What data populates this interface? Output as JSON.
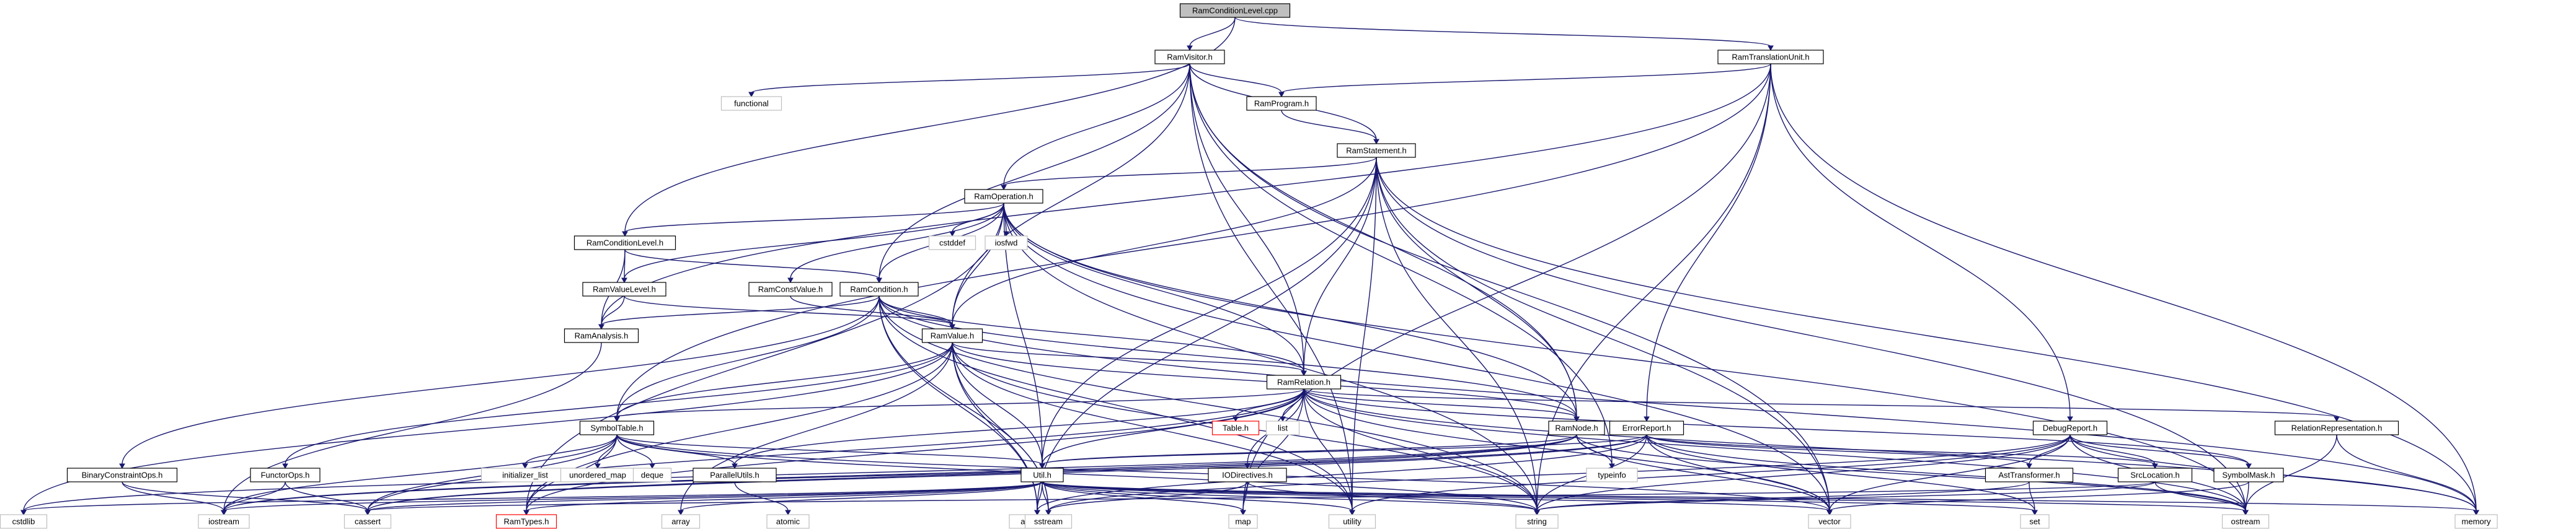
{
  "diagram": {
    "nodes": [
      {
        "id": "root",
        "label": "RamConditionLevel.cpp",
        "kind": "root"
      },
      {
        "id": "ramvisitor",
        "label": "RamVisitor.h",
        "kind": "header"
      },
      {
        "id": "ramtranslationunit",
        "label": "RamTranslationUnit.h",
        "kind": "header"
      },
      {
        "id": "functional",
        "label": "functional",
        "kind": "system"
      },
      {
        "id": "ramprogram",
        "label": "RamProgram.h",
        "kind": "header"
      },
      {
        "id": "ramstatement",
        "label": "RamStatement.h",
        "kind": "header"
      },
      {
        "id": "ramoperation",
        "label": "RamOperation.h",
        "kind": "header"
      },
      {
        "id": "cstddef",
        "label": "cstddef",
        "kind": "system"
      },
      {
        "id": "iosfwd",
        "label": "iosfwd",
        "kind": "system"
      },
      {
        "id": "ramconditionlevel",
        "label": "RamConditionLevel.h",
        "kind": "header"
      },
      {
        "id": "ramconstvalue",
        "label": "RamConstValue.h",
        "kind": "header"
      },
      {
        "id": "ramcondition",
        "label": "RamCondition.h",
        "kind": "header"
      },
      {
        "id": "ramvaluelevel",
        "label": "RamValueLevel.h",
        "kind": "header"
      },
      {
        "id": "ramanalysis",
        "label": "RamAnalysis.h",
        "kind": "header"
      },
      {
        "id": "ramvalue",
        "label": "RamValue.h",
        "kind": "header"
      },
      {
        "id": "ramrelation",
        "label": "RamRelation.h",
        "kind": "header"
      },
      {
        "id": "symboltable",
        "label": "SymbolTable.h",
        "kind": "header"
      },
      {
        "id": "tableh",
        "label": "Table.h",
        "kind": "missing"
      },
      {
        "id": "list",
        "label": "list",
        "kind": "system"
      },
      {
        "id": "ramnode",
        "label": "RamNode.h",
        "kind": "header"
      },
      {
        "id": "errorreport",
        "label": "ErrorReport.h",
        "kind": "header"
      },
      {
        "id": "debugreport",
        "label": "DebugReport.h",
        "kind": "header"
      },
      {
        "id": "relationrepresentation",
        "label": "RelationRepresentation.h",
        "kind": "header"
      },
      {
        "id": "binaryconstraintops",
        "label": "BinaryConstraintOps.h",
        "kind": "header"
      },
      {
        "id": "functorops",
        "label": "FunctorOps.h",
        "kind": "header"
      },
      {
        "id": "initializer_list",
        "label": "initializer_list",
        "kind": "system"
      },
      {
        "id": "unordered_map",
        "label": "unordered_map",
        "kind": "system"
      },
      {
        "id": "deque",
        "label": "deque",
        "kind": "system"
      },
      {
        "id": "parallelutils",
        "label": "ParallelUtils.h",
        "kind": "header"
      },
      {
        "id": "utilh",
        "label": "Util.h",
        "kind": "header"
      },
      {
        "id": "iodirectives",
        "label": "IODirectives.h",
        "kind": "header"
      },
      {
        "id": "typeinfo",
        "label": "typeinfo",
        "kind": "system"
      },
      {
        "id": "asttransformer",
        "label": "AstTransformer.h",
        "kind": "header"
      },
      {
        "id": "srclocation",
        "label": "SrcLocation.h",
        "kind": "header"
      },
      {
        "id": "symbolmask",
        "label": "SymbolMask.h",
        "kind": "header"
      },
      {
        "id": "cstdlib",
        "label": "cstdlib",
        "kind": "system"
      },
      {
        "id": "iostream",
        "label": "iostream",
        "kind": "system"
      },
      {
        "id": "cassert",
        "label": "cassert",
        "kind": "system"
      },
      {
        "id": "ramtypes",
        "label": "RamTypes.h",
        "kind": "missing"
      },
      {
        "id": "array",
        "label": "array",
        "kind": "system"
      },
      {
        "id": "atomic",
        "label": "atomic",
        "kind": "system"
      },
      {
        "id": "algorithm",
        "label": "algorithm",
        "kind": "system"
      },
      {
        "id": "sstream",
        "label": "sstream",
        "kind": "system"
      },
      {
        "id": "map",
        "label": "map",
        "kind": "system"
      },
      {
        "id": "utility",
        "label": "utility",
        "kind": "system"
      },
      {
        "id": "string",
        "label": "string",
        "kind": "system"
      },
      {
        "id": "vector",
        "label": "vector",
        "kind": "system"
      },
      {
        "id": "set",
        "label": "set",
        "kind": "system"
      },
      {
        "id": "ostream",
        "label": "ostream",
        "kind": "system"
      },
      {
        "id": "memory",
        "label": "memory",
        "kind": "system"
      }
    ],
    "edges": [
      [
        "root",
        "ramvisitor"
      ],
      [
        "root",
        "ramtranslationunit"
      ],
      [
        "root",
        "ramconditionlevel"
      ],
      [
        "ramvisitor",
        "functional"
      ],
      [
        "ramvisitor",
        "ramprogram"
      ],
      [
        "ramvisitor",
        "ramstatement"
      ],
      [
        "ramvisitor",
        "ramoperation"
      ],
      [
        "ramvisitor",
        "ramcondition"
      ],
      [
        "ramvisitor",
        "ramvalue"
      ],
      [
        "ramvisitor",
        "ramrelation"
      ],
      [
        "ramvisitor",
        "ramnode"
      ],
      [
        "ramvisitor",
        "typeinfo"
      ],
      [
        "ramvisitor",
        "vector"
      ],
      [
        "ramvisitor",
        "utility"
      ],
      [
        "ramtranslationunit",
        "ramprogram"
      ],
      [
        "ramtranslationunit",
        "ramanalysis"
      ],
      [
        "ramtranslationunit",
        "symboltable"
      ],
      [
        "ramtranslationunit",
        "errorreport"
      ],
      [
        "ramtranslationunit",
        "debugreport"
      ],
      [
        "ramtranslationunit",
        "memory"
      ],
      [
        "ramtranslationunit",
        "string"
      ],
      [
        "ramtranslationunit",
        "map"
      ],
      [
        "ramprogram",
        "ramstatement"
      ],
      [
        "ramstatement",
        "ramoperation"
      ],
      [
        "ramstatement",
        "ramvalue"
      ],
      [
        "ramstatement",
        "ramrelation"
      ],
      [
        "ramstatement",
        "ramnode"
      ],
      [
        "ramstatement",
        "utilh"
      ],
      [
        "ramstatement",
        "algorithm"
      ],
      [
        "ramstatement",
        "memory"
      ],
      [
        "ramstatement",
        "ostream"
      ],
      [
        "ramstatement",
        "string"
      ],
      [
        "ramstatement",
        "vector"
      ],
      [
        "ramstatement",
        "utility"
      ],
      [
        "ramoperation",
        "cstddef"
      ],
      [
        "ramoperation",
        "iosfwd"
      ],
      [
        "ramoperation",
        "ramconditionlevel"
      ],
      [
        "ramoperation",
        "ramconstvalue"
      ],
      [
        "ramoperation",
        "ramcondition"
      ],
      [
        "ramoperation",
        "ramvaluelevel"
      ],
      [
        "ramoperation",
        "ramvalue"
      ],
      [
        "ramoperation",
        "ramrelation"
      ],
      [
        "ramoperation",
        "ramnode"
      ],
      [
        "ramoperation",
        "utilh"
      ],
      [
        "ramoperation",
        "ramtypes"
      ],
      [
        "ramoperation",
        "string"
      ],
      [
        "ramoperation",
        "vector"
      ],
      [
        "ramoperation",
        "ostream"
      ],
      [
        "ramconditionlevel",
        "ramvaluelevel"
      ],
      [
        "ramconditionlevel",
        "ramanalysis"
      ],
      [
        "ramconditionlevel",
        "ramcondition"
      ],
      [
        "ramvaluelevel",
        "ramanalysis"
      ],
      [
        "ramvaluelevel",
        "ramvalue"
      ],
      [
        "ramconstvalue",
        "ramvalue"
      ],
      [
        "ramcondition",
        "ramvalue"
      ],
      [
        "ramcondition",
        "ramanalysis"
      ],
      [
        "ramcondition",
        "ramrelation"
      ],
      [
        "ramcondition",
        "ramnode"
      ],
      [
        "ramcondition",
        "symboltable"
      ],
      [
        "ramcondition",
        "binaryconstraintops"
      ],
      [
        "ramcondition",
        "algorithm"
      ],
      [
        "ramcondition",
        "sstream"
      ],
      [
        "ramcondition",
        "memory"
      ],
      [
        "ramcondition",
        "string"
      ],
      [
        "ramcondition",
        "utility"
      ],
      [
        "ramanalysis",
        "iostream"
      ],
      [
        "ramvalue",
        "ramrelation"
      ],
      [
        "ramvalue",
        "ramnode"
      ],
      [
        "ramvalue",
        "symboltable"
      ],
      [
        "ramvalue",
        "functorops"
      ],
      [
        "ramvalue",
        "utilh"
      ],
      [
        "ramvalue",
        "ramtypes"
      ],
      [
        "ramvalue",
        "algorithm"
      ],
      [
        "ramvalue",
        "sstream"
      ],
      [
        "ramvalue",
        "array"
      ],
      [
        "ramvalue",
        "string"
      ],
      [
        "ramvalue",
        "utility"
      ],
      [
        "ramvalue",
        "cstdlib"
      ],
      [
        "ramrelation",
        "tableh"
      ],
      [
        "ramrelation",
        "list"
      ],
      [
        "ramrelation",
        "ramnode"
      ],
      [
        "ramrelation",
        "relationrepresentation"
      ],
      [
        "ramrelation",
        "symboltable"
      ],
      [
        "ramrelation",
        "symbolmask"
      ],
      [
        "ramrelation",
        "parallelutils"
      ],
      [
        "ramrelation",
        "utilh"
      ],
      [
        "ramrelation",
        "iodirectives"
      ],
      [
        "ramrelation",
        "ramtypes"
      ],
      [
        "ramrelation",
        "string"
      ],
      [
        "ramrelation",
        "utility"
      ],
      [
        "ramrelation",
        "vector"
      ],
      [
        "ramrelation",
        "map"
      ],
      [
        "ramrelation",
        "ostream"
      ],
      [
        "ramrelation",
        "cassert"
      ],
      [
        "ramrelation",
        "memory"
      ],
      [
        "symboltable",
        "initializer_list"
      ],
      [
        "symboltable",
        "unordered_map"
      ],
      [
        "symboltable",
        "deque"
      ],
      [
        "symboltable",
        "parallelutils"
      ],
      [
        "symboltable",
        "utilh"
      ],
      [
        "symboltable",
        "ramtypes"
      ],
      [
        "symboltable",
        "cassert"
      ],
      [
        "symboltable",
        "iostream"
      ],
      [
        "symboltable",
        "string"
      ],
      [
        "symboltable",
        "vector"
      ],
      [
        "parallelutils",
        "atomic"
      ],
      [
        "ramnode",
        "typeinfo"
      ],
      [
        "ramnode",
        "utilh"
      ],
      [
        "ramnode",
        "vector"
      ],
      [
        "ramnode",
        "ostream"
      ],
      [
        "ramnode",
        "iostream"
      ],
      [
        "ramnode",
        "cassert"
      ],
      [
        "ramnode",
        "cstdlib"
      ],
      [
        "errorreport",
        "srclocation"
      ],
      [
        "errorreport",
        "asttransformer"
      ],
      [
        "errorreport",
        "utilh"
      ],
      [
        "errorreport",
        "algorithm"
      ],
      [
        "errorreport",
        "iostream"
      ],
      [
        "errorreport",
        "string"
      ],
      [
        "errorreport",
        "vector"
      ],
      [
        "errorreport",
        "ostream"
      ],
      [
        "errorreport",
        "set"
      ],
      [
        "errorreport",
        "cassert"
      ],
      [
        "debugreport",
        "asttransformer"
      ],
      [
        "debugreport",
        "srclocation"
      ],
      [
        "debugreport",
        "symbolmask"
      ],
      [
        "debugreport",
        "memory"
      ],
      [
        "debugreport",
        "sstream"
      ],
      [
        "debugreport",
        "string"
      ],
      [
        "debugreport",
        "vector"
      ],
      [
        "debugreport",
        "utility"
      ],
      [
        "debugreport",
        "ostream"
      ],
      [
        "relationrepresentation",
        "ostream"
      ],
      [
        "relationrepresentation",
        "memory"
      ],
      [
        "binaryconstraintops",
        "iostream"
      ],
      [
        "binaryconstraintops",
        "cassert"
      ],
      [
        "functorops",
        "iostream"
      ],
      [
        "functorops",
        "cassert"
      ],
      [
        "utilh",
        "cstdlib"
      ],
      [
        "utilh",
        "iostream"
      ],
      [
        "utilh",
        "cassert"
      ],
      [
        "utilh",
        "ramtypes"
      ],
      [
        "utilh",
        "array"
      ],
      [
        "utilh",
        "algorithm"
      ],
      [
        "utilh",
        "sstream"
      ],
      [
        "utilh",
        "map"
      ],
      [
        "utilh",
        "utility"
      ],
      [
        "utilh",
        "string"
      ],
      [
        "utilh",
        "vector"
      ],
      [
        "utilh",
        "set"
      ],
      [
        "utilh",
        "ostream"
      ],
      [
        "utilh",
        "memory"
      ],
      [
        "iodirectives",
        "map"
      ],
      [
        "iodirectives",
        "sstream"
      ],
      [
        "iodirectives",
        "string"
      ],
      [
        "asttransformer",
        "string"
      ],
      [
        "asttransformer",
        "set"
      ],
      [
        "srclocation",
        "string"
      ],
      [
        "srclocation",
        "ostream"
      ],
      [
        "srclocation",
        "cassert"
      ],
      [
        "symbolmask",
        "ostream"
      ],
      [
        "symbolmask",
        "vector"
      ]
    ]
  }
}
